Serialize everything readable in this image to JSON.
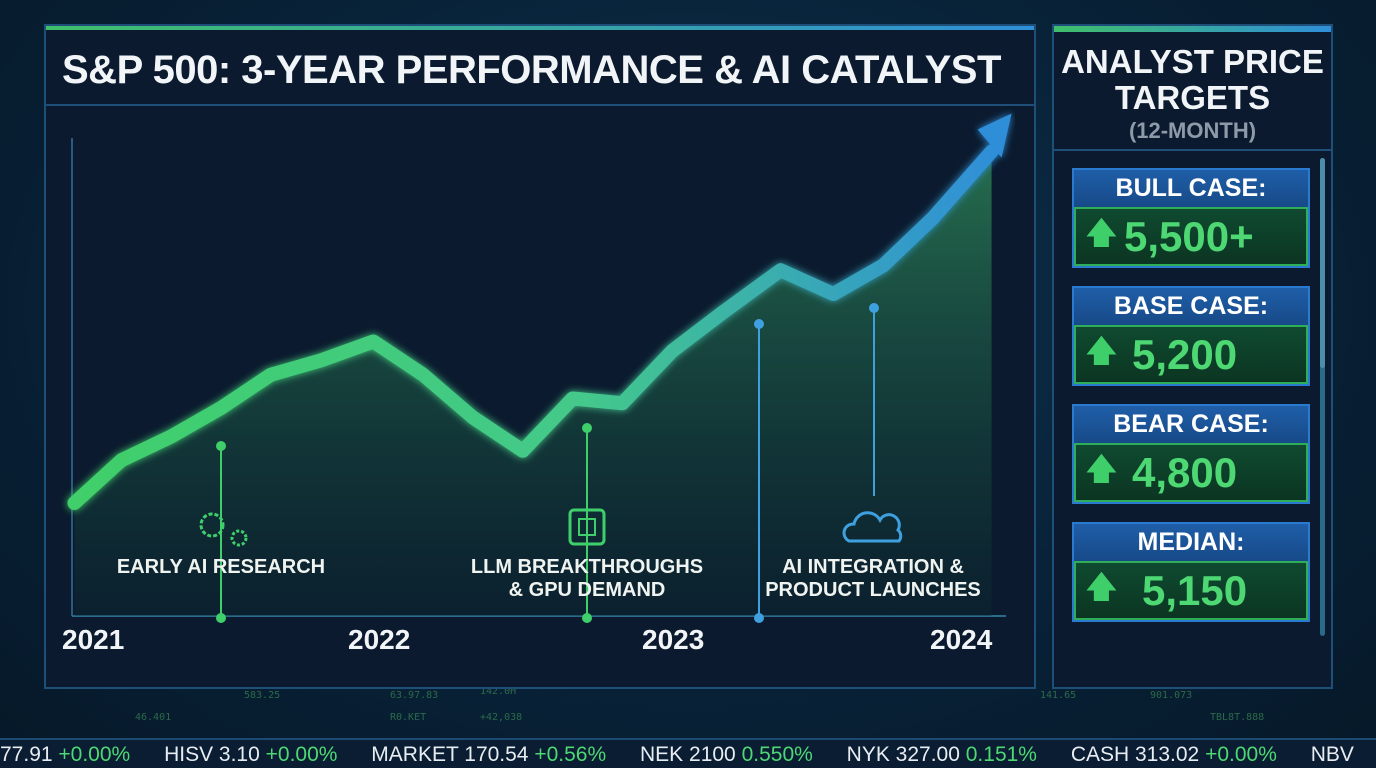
{
  "title": "S&P 500: 3-YEAR PERFORMANCE & AI CATALYST",
  "chart_data": {
    "type": "area",
    "title": "S&P 500: 3-YEAR PERFORMANCE & AI CATALYST",
    "xlabel": "",
    "ylabel": "",
    "x_tick_labels": [
      "2021",
      "2022",
      "2023",
      "2024"
    ],
    "xlim": [
      2020.93,
      2024.15
    ],
    "ylim": [
      0,
      100
    ],
    "grid": false,
    "series": [
      {
        "x": [
          2020.93,
          2021.09,
          2021.26,
          2021.43,
          2021.6,
          2021.77,
          2021.95,
          2022.12,
          2022.29,
          2022.46,
          2022.63,
          2022.8,
          2022.97,
          2023.14,
          2023.34,
          2023.52,
          2023.69,
          2023.86,
          2024.06
        ],
        "y": [
          24,
          33,
          38,
          44,
          51,
          54,
          58,
          51,
          42,
          35,
          46,
          45,
          56,
          64,
          73,
          68,
          74,
          84,
          98
        ]
      }
    ],
    "colors": {
      "start": "#3fcf6a",
      "end": "#2f8fd8"
    },
    "annotations": [
      {
        "text": "EARLY AI RESEARCH",
        "x": 2021.43,
        "icon": "gears-icon",
        "color": "#3fcf6a"
      },
      {
        "text": "LLM BREAKTHROUGHS & GPU DEMAND",
        "x": 2022.68,
        "icon": "chip-icon",
        "color": "#3fcf6a"
      },
      {
        "text": "AI INTEGRATION & PRODUCT LAUNCHES",
        "x": 2023.26,
        "icon": "cloud-icon",
        "color": "#2f8fd8"
      }
    ]
  },
  "side": {
    "title": "ANALYST PRICE TARGETS",
    "subtitle": "(12-MONTH)",
    "cards": [
      {
        "label": "BULL CASE:",
        "value": "5,500+",
        "icon": "arrow-up-icon"
      },
      {
        "label": "BASE CASE:",
        "value": "5,200",
        "icon": "arrow-up-icon"
      },
      {
        "label": "BEAR CASE:",
        "value": "4,800",
        "icon": "arrow-up-icon"
      },
      {
        "label": "MEDIAN:",
        "value": "5,150",
        "icon": "arrow-up-icon"
      }
    ]
  },
  "ticker": [
    {
      "name": "77.91",
      "change": "+0.00%"
    },
    {
      "name": "HISV 3.10",
      "change": "+0.00%"
    },
    {
      "name": "MARKET 170.54",
      "change": "+0.56%"
    },
    {
      "name": "NEK 2100",
      "change": "0.550%"
    },
    {
      "name": "NYK 327.00",
      "change": "0.151%"
    },
    {
      "name": "CASH 313.02",
      "change": "+0.00%"
    },
    {
      "name": "NBV",
      "change": ""
    }
  ]
}
